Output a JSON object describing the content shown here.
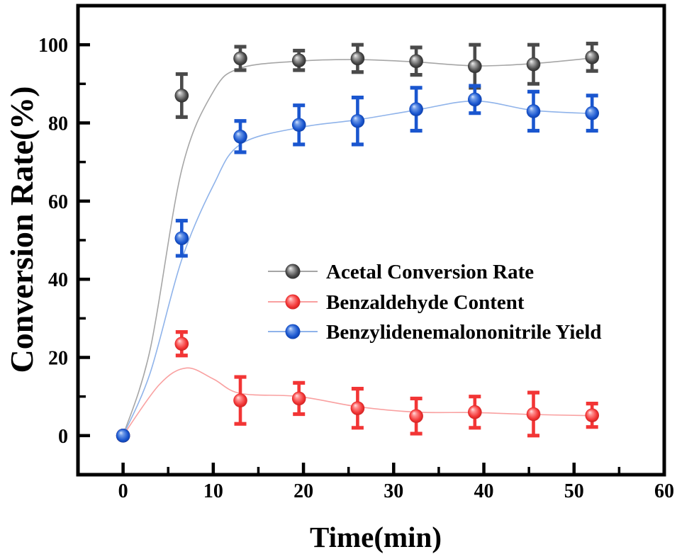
{
  "chart_data": {
    "type": "line",
    "title": "",
    "xlabel": "Time(min)",
    "ylabel": "Conversion Rate(%)",
    "xlim": [
      -5,
      60
    ],
    "ylim": [
      -10,
      110
    ],
    "x_ticks": [
      0,
      10,
      20,
      30,
      40,
      50,
      60
    ],
    "x_minor_ticks": [
      5,
      15,
      25,
      35,
      45,
      55
    ],
    "y_ticks": [
      0,
      20,
      40,
      60,
      80,
      100
    ],
    "y_minor_ticks": [
      10,
      30,
      50,
      70,
      90
    ],
    "grid": false,
    "background": "#ffffff",
    "axis_color": "#000000",
    "legend_position": "inside-right-middle",
    "x": [
      0,
      6.5,
      13,
      19.5,
      26,
      32.5,
      39,
      45.5,
      52
    ],
    "series": [
      {
        "name": "Acetal Conversion Rate",
        "marker_color": "#4a4a4a",
        "line_color": "#a6a6a6",
        "marker_gradient": [
          "#f2f2f2",
          "#ababab",
          "#4a4a4a",
          "#262626"
        ],
        "values": [
          0,
          87,
          96.5,
          96,
          96.5,
          95.8,
          94.5,
          95,
          96.8
        ],
        "errors": [
          0,
          5.5,
          3,
          2.5,
          3.5,
          3.5,
          5.5,
          5,
          3.5
        ],
        "trend_line": [
          [
            0,
            0
          ],
          [
            3,
            22
          ],
          [
            6.5,
            68
          ],
          [
            10,
            88
          ],
          [
            13,
            94
          ],
          [
            19.5,
            95.8
          ],
          [
            26,
            96.2
          ],
          [
            32.5,
            95.6
          ],
          [
            39,
            94.6
          ],
          [
            45.5,
            95.2
          ],
          [
            52,
            96.6
          ]
        ]
      },
      {
        "name": "Benzaldehyde Content",
        "marker_color": "#f23535",
        "line_color": "#f9a0a0",
        "marker_gradient": [
          "#ffe3e3",
          "#ff8d8d",
          "#f23535",
          "#c51d1d"
        ],
        "values": [
          0,
          23.5,
          9,
          9.5,
          7,
          5,
          6,
          5.5,
          5.2
        ],
        "errors": [
          0,
          3,
          6,
          4,
          5,
          4.5,
          4,
          5.5,
          3
        ],
        "trend_line": [
          [
            0,
            0
          ],
          [
            4,
            13
          ],
          [
            7,
            17.3
          ],
          [
            10,
            14.5
          ],
          [
            13,
            10.8
          ],
          [
            19.5,
            10
          ],
          [
            26,
            7.4
          ],
          [
            32.5,
            6
          ],
          [
            39,
            5.9
          ],
          [
            45.5,
            5.4
          ],
          [
            52,
            5.1
          ]
        ]
      },
      {
        "name": "Benzylidenemalononitrile Yield",
        "marker_color": "#1a56cf",
        "line_color": "#8fb3ea",
        "marker_gradient": [
          "#d8e6ff",
          "#6f9be8",
          "#1a56cf",
          "#0b3aa0"
        ],
        "values": [
          0,
          50.5,
          76.5,
          79.5,
          80.5,
          83.5,
          86,
          83,
          82.5
        ],
        "errors": [
          0,
          4.5,
          4,
          5,
          6,
          5.5,
          3.5,
          5,
          4.5
        ],
        "trend_line": [
          [
            0,
            0
          ],
          [
            3,
            16
          ],
          [
            6.5,
            45
          ],
          [
            10,
            64
          ],
          [
            13,
            74.5
          ],
          [
            19.5,
            78.8
          ],
          [
            26,
            80.8
          ],
          [
            32.5,
            83.3
          ],
          [
            39,
            85.6
          ],
          [
            45.5,
            83.2
          ],
          [
            52,
            82.4
          ]
        ]
      }
    ]
  }
}
